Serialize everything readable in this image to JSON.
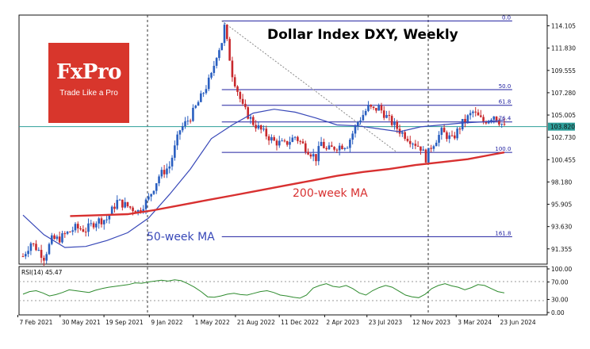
{
  "logo": {
    "name": "FxPro",
    "tagline": "Trade Like a Pro",
    "color": "#d8362c"
  },
  "chart_data": [
    {
      "type": "candlestick",
      "title": "Dollar Index DXY, Weekly",
      "timeframe": "weekly",
      "ylim": [
        89.8,
        115.2
      ],
      "y_ticks": [
        "114.105",
        "111.830",
        "109.555",
        "107.280",
        "105.005",
        "102.730",
        "100.455",
        "98.180",
        "95.905",
        "93.630",
        "91.355"
      ],
      "x_tick_labels": [
        "7 Feb 2021",
        "30 May 2021",
        "19 Sep 2021",
        "9 Jan 2022",
        "1 May 2022",
        "21 Aug 2022",
        "11 Dec 2022",
        "2 Apr 2023",
        "23 Jul 2023",
        "12 Nov 2023",
        "3 Mar 2024",
        "23 Jun 2024"
      ],
      "current_price": {
        "label": "103.820",
        "value": 103.82,
        "color": "#2e9e9a"
      },
      "series": [
        {
          "name": "50-week MA",
          "color": "#3848b8",
          "type": "line",
          "x": [
            0,
            8,
            16,
            24,
            32,
            40,
            48,
            56,
            64,
            72,
            80,
            88,
            96,
            104,
            112,
            120,
            128,
            136,
            144,
            152,
            160,
            168,
            176,
            184
          ],
          "values": [
            94.8,
            92.8,
            91.5,
            91.6,
            92.2,
            93.0,
            94.5,
            96.9,
            99.5,
            102.6,
            104.0,
            105.2,
            105.6,
            105.3,
            104.7,
            104.0,
            103.9,
            103.6,
            103.3,
            103.8,
            104.0,
            104.2,
            104.3,
            104.5
          ]
        },
        {
          "name": "200-week MA",
          "color": "#d83030",
          "type": "line",
          "x": [
            18,
            30,
            40,
            50,
            60,
            70,
            80,
            90,
            100,
            110,
            120,
            130,
            140,
            150,
            160,
            170,
            180,
            184
          ],
          "values": [
            94.7,
            94.8,
            94.9,
            95.3,
            95.8,
            96.3,
            96.8,
            97.3,
            97.8,
            98.3,
            98.8,
            99.2,
            99.5,
            99.9,
            100.2,
            100.5,
            101.0,
            101.2
          ]
        }
      ],
      "ohlc_key_points": {
        "x": [
          0,
          3,
          6,
          8,
          11,
          14,
          16,
          20,
          24,
          28,
          32,
          36,
          40,
          44,
          48,
          52,
          56,
          60,
          64,
          68,
          72,
          74,
          76,
          77,
          80,
          84,
          88,
          92,
          96,
          100,
          104,
          108,
          112,
          114,
          116,
          120,
          124,
          128,
          132,
          134,
          136,
          140,
          144,
          148,
          152,
          154,
          156,
          160,
          164,
          168,
          172,
          176,
          180,
          184
        ],
        "close": [
          90.6,
          92.0,
          91.2,
          90.5,
          92.3,
          92.4,
          92.8,
          93.5,
          93.3,
          94.2,
          94.4,
          96.2,
          95.7,
          95.2,
          96.5,
          98.8,
          99.8,
          103.5,
          104.8,
          106.8,
          109.0,
          111.2,
          112.5,
          114.0,
          109.2,
          105.8,
          104.2,
          103.2,
          102.3,
          102.0,
          102.8,
          101.7,
          100.6,
          102.2,
          101.4,
          101.8,
          102.0,
          104.3,
          105.8,
          105.5,
          105.8,
          104.5,
          103.4,
          102.5,
          101.7,
          100.6,
          101.8,
          103.3,
          102.5,
          104.2,
          105.3,
          104.3,
          105.0,
          103.8
        ],
        "color_up": "#2a5fc0",
        "color_down": "#c8282c"
      },
      "fibonacci": {
        "levels": [
          {
            "label": "0.0",
            "value": 114.6
          },
          {
            "label": "50.0",
            "value": 107.6
          },
          {
            "label": "61.8",
            "value": 106.0
          },
          {
            "label": "76.4",
            "value": 104.3
          },
          {
            "label": "100.0",
            "value": 101.2
          },
          {
            "label": "161.8",
            "value": 92.6
          }
        ],
        "color": "#2020a0"
      },
      "annotations": [
        {
          "label": "200-week MA"
        },
        {
          "label": "50-week MA"
        }
      ],
      "grid": "vertical dashed at 9 Jan 2022 and 12 Nov 2023"
    },
    {
      "type": "line",
      "label": "RSI(14) 45.47",
      "ylim": [
        0,
        100
      ],
      "y_ticks": [
        "100.00",
        "70.00",
        "30.00",
        "0.00"
      ],
      "color": "#2e8b2e",
      "values": [
        42,
        48,
        50,
        45,
        38,
        41,
        46,
        52,
        50,
        48,
        46,
        51,
        55,
        58,
        60,
        62,
        64,
        68,
        67,
        70,
        72,
        74,
        72,
        75,
        73,
        66,
        58,
        48,
        36,
        35,
        38,
        42,
        44,
        41,
        40,
        44,
        48,
        50,
        46,
        40,
        38,
        35,
        33,
        40,
        56,
        62,
        66,
        60,
        58,
        62,
        55,
        45,
        40,
        50,
        57,
        62,
        58,
        49,
        40,
        36,
        34,
        42,
        55,
        62,
        66,
        61,
        58,
        52,
        57,
        64,
        62,
        55,
        48,
        45
      ]
    }
  ]
}
